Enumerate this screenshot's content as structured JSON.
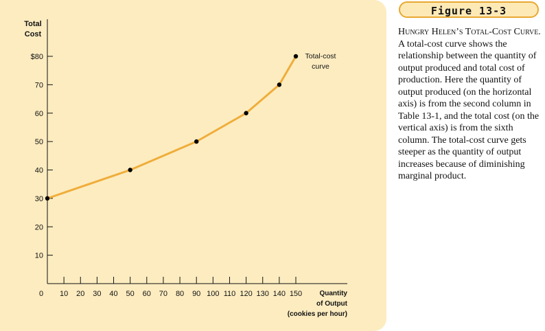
{
  "figure": {
    "label": "Figure 13-3",
    "caption_title": "Hungry Helen’s Total-Cost Curve.",
    "caption_body": "A total-cost curve shows the relationship between the quantity of output produced and total cost of production. Here the quantity of output produced (on the horizontal axis) is from the second column in Table 13-1, and the total cost (on the vertical axis) is from the sixth column. The total-cost curve gets steeper as the quantity of output increases because of diminishing marginal product."
  },
  "colors": {
    "panel": "#fcecc0",
    "curve": "#f0ad3a",
    "points": "#000000",
    "badge_border": "#e8a830"
  },
  "chart_data": {
    "type": "line",
    "ylabel_lines": [
      "Total",
      "Cost"
    ],
    "xlabel_lines": [
      "Quantity",
      "of Output",
      "(cookies per hour)"
    ],
    "xlim": [
      0,
      150
    ],
    "ylim": [
      0,
      80
    ],
    "x_ticks": [
      0,
      10,
      20,
      30,
      40,
      50,
      60,
      70,
      80,
      90,
      100,
      110,
      120,
      130,
      140,
      150
    ],
    "x_tick_labels": [
      "0",
      "10",
      "20",
      "30",
      "40",
      "50",
      "60",
      "70",
      "80",
      "90",
      "100",
      "110",
      "120",
      "130",
      "140",
      "150"
    ],
    "y_ticks": [
      10,
      20,
      30,
      40,
      50,
      60,
      70,
      80
    ],
    "y_tick_labels": [
      "10",
      "20",
      "30",
      "40",
      "50",
      "60",
      "70",
      "$80"
    ],
    "series": [
      {
        "x": [
          0,
          50,
          90,
          120,
          140,
          150
        ],
        "y": [
          30,
          40,
          50,
          60,
          70,
          80
        ]
      }
    ],
    "annotation_lines": [
      "Total-cost",
      "curve"
    ],
    "grid": false
  }
}
